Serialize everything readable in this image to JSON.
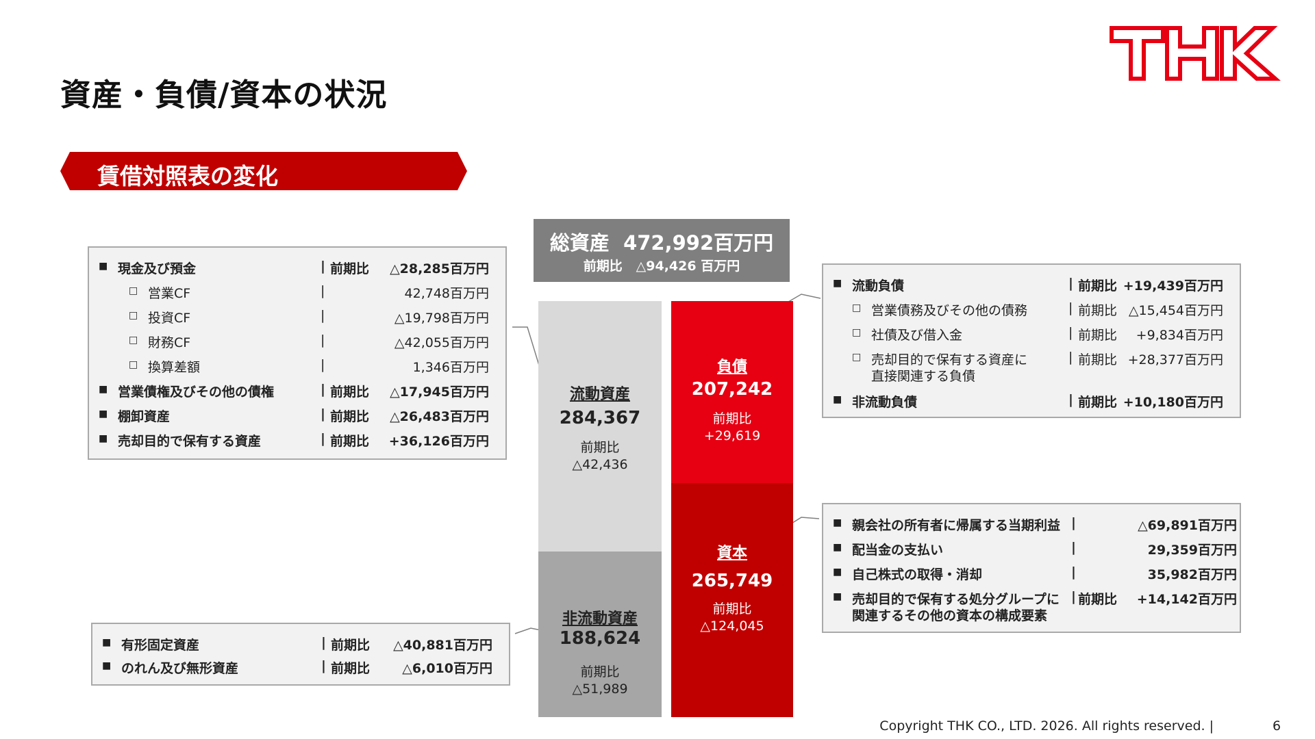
{
  "page": {
    "title": "資産・負債/資本の状況",
    "section": "賃借対照表の変化",
    "logo_text": "THK",
    "footer": "Copyright THK CO., LTD. 2026. All rights reserved. |",
    "page_number": "6"
  },
  "total": {
    "label": "総資産",
    "value": "472,992百万円",
    "change_label": "前期比",
    "change_value": "△94,426 百万円"
  },
  "bars": {
    "current_assets": {
      "name": "流動資産",
      "value": "284,367",
      "change_label": "前期比",
      "change_value": "△42,436"
    },
    "noncurrent_assets": {
      "name": "非流動資産",
      "value": "188,624",
      "change_label": "前期比",
      "change_value": "△51,989"
    },
    "liabilities": {
      "name": "負債",
      "value": "207,242",
      "change_label": "前期比",
      "change_value": "+29,619"
    },
    "equity": {
      "name": "資本",
      "value": "265,749",
      "change_label": "前期比",
      "change_value": "△124,045"
    }
  },
  "current_assets_box": {
    "rows": [
      {
        "bullet": "■",
        "label": "現金及び預金",
        "sep": "|",
        "cmp": "前期比",
        "value": "△28,285百万円",
        "bold": true,
        "indent": false
      },
      {
        "bullet": "□",
        "label": "営業CF",
        "sep": "|",
        "cmp": "",
        "value": "42,748百万円",
        "bold": false,
        "indent": true
      },
      {
        "bullet": "□",
        "label": "投資CF",
        "sep": "|",
        "cmp": "",
        "value": "△19,798百万円",
        "bold": false,
        "indent": true
      },
      {
        "bullet": "□",
        "label": "財務CF",
        "sep": "|",
        "cmp": "",
        "value": "△42,055百万円",
        "bold": false,
        "indent": true
      },
      {
        "bullet": "□",
        "label": "換算差額",
        "sep": "|",
        "cmp": "",
        "value": "1,346百万円",
        "bold": false,
        "indent": true
      },
      {
        "bullet": "■",
        "label": "営業債権及びその他の債権",
        "sep": "|",
        "cmp": "前期比",
        "value": "△17,945百万円",
        "bold": true,
        "indent": false
      },
      {
        "bullet": "■",
        "label": "棚卸資産",
        "sep": "|",
        "cmp": "前期比",
        "value": "△26,483百万円",
        "bold": true,
        "indent": false
      },
      {
        "bullet": "■",
        "label": "売却目的で保有する資産",
        "sep": "|",
        "cmp": "前期比",
        "value": "+36,126百万円",
        "bold": true,
        "indent": false
      }
    ]
  },
  "noncurrent_assets_box": {
    "rows": [
      {
        "bullet": "■",
        "label": "有形固定資産",
        "sep": "|",
        "cmp": "前期比",
        "value": "△40,881百万円"
      },
      {
        "bullet": "■",
        "label": "のれん及び無形資産",
        "sep": "|",
        "cmp": "前期比",
        "value": "△6,010百万円"
      }
    ]
  },
  "liabilities_box": {
    "rows": [
      {
        "bullet": "■",
        "label": "流動負債",
        "label2": "",
        "sep": "|",
        "cmp": "前期比",
        "value": "+19,439百万円",
        "bold": true,
        "indent": false
      },
      {
        "bullet": "□",
        "label": "営業債務及びその他の債務",
        "label2": "",
        "sep": "|",
        "cmp": "前期比",
        "value": "△15,454百万円",
        "bold": false,
        "indent": true
      },
      {
        "bullet": "□",
        "label": "社債及び借入金",
        "label2": "",
        "sep": "|",
        "cmp": "前期比",
        "value": "+9,834百万円",
        "bold": false,
        "indent": true
      },
      {
        "bullet": "□",
        "label": "売却目的で保有する資産に",
        "label2": "直接関連する負債",
        "sep": "|",
        "cmp": "前期比",
        "value": "+28,377百万円",
        "bold": false,
        "indent": true
      },
      {
        "bullet": "■",
        "label": "非流動負債",
        "label2": "",
        "sep": "|",
        "cmp": "前期比",
        "value": "+10,180百万円",
        "bold": true,
        "indent": false
      }
    ]
  },
  "equity_box": {
    "rows": [
      {
        "bullet": "■",
        "label": "親会社の所有者に帰属する当期利益",
        "label2": "",
        "sep": "|",
        "cmp": "",
        "value": "△69,891百万円"
      },
      {
        "bullet": "■",
        "label": "配当金の支払い",
        "label2": "",
        "sep": "|",
        "cmp": "",
        "value": "29,359百万円"
      },
      {
        "bullet": "■",
        "label": "自己株式の取得・消却",
        "label2": "",
        "sep": "|",
        "cmp": "",
        "value": "35,982百万円"
      },
      {
        "bullet": "■",
        "label": "売却目的で保有する処分グループに",
        "label2": "関連するその他の資本の構成要素",
        "sep": "|",
        "cmp": "前期比",
        "value": "+14,142百万円"
      }
    ]
  },
  "colors": {
    "brand_red": "#c00000",
    "liabilities": "#e60012",
    "equity": "#c00000",
    "current_assets": "#d9d9d9",
    "noncurrent_assets": "#a6a6a6",
    "total_box": "#7f7f7f"
  }
}
